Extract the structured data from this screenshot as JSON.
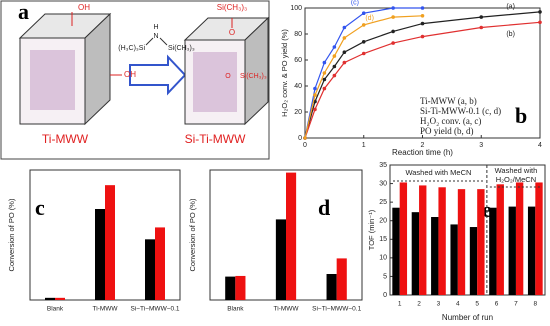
{
  "diagram": {
    "panel_label": "a",
    "left_label": "Ti-MWW",
    "right_label": "Si-Ti-MWW",
    "oh_top": "OH",
    "oh_right": "OH",
    "reagent_left": "(H₃C)₃Si",
    "reagent_h": "H",
    "reagent_n": "N",
    "reagent_right": "Si(CH₃)₃",
    "o_top": "O",
    "si_top": "Si(CH₃)₃",
    "o_right": "O",
    "si_right": "Si(CH₃)₃"
  },
  "chart_data": [
    {
      "type": "line",
      "panel_label": "b",
      "x_label": "Reaction time (h)",
      "y_label": "H₂O₂ conv. & PO yield (%)",
      "x": [
        0,
        0.17,
        0.33,
        0.5,
        0.67,
        1,
        1.5,
        2,
        3,
        4
      ],
      "series": [
        {
          "name": "(a)",
          "color": "#222222",
          "values": [
            0,
            28,
            45,
            55,
            66,
            74,
            82,
            88,
            93,
            97
          ]
        },
        {
          "name": "(b)",
          "color": "#e03030",
          "values": [
            0,
            22,
            38,
            48,
            58,
            65,
            73,
            78,
            85,
            89
          ]
        },
        {
          "name": "(c)",
          "color": "#3355ee",
          "values": [
            0,
            38,
            58,
            70,
            85,
            96,
            100,
            100,
            null,
            null
          ]
        },
        {
          "name": "(d)",
          "color": "#f0a020",
          "values": [
            0,
            33,
            50,
            63,
            77,
            87,
            93,
            94,
            null,
            null
          ]
        }
      ],
      "xlim": [
        0,
        4
      ],
      "xticks": [
        0,
        1,
        2,
        3,
        4
      ],
      "ylim": [
        0,
        100
      ],
      "yticks": [
        0,
        20,
        40,
        60,
        80,
        100
      ],
      "legend_lines": [
        "Ti-MWW (a, b)",
        "Si-Ti-MWW-0.1 (c, d)",
        "H₂O₂ conv. (a, c)",
        "PO yield (b, d)"
      ]
    },
    {
      "type": "bar",
      "panel_label": "c",
      "y_label": "Conversion of PO (%)",
      "categories": [
        "Blank",
        "Ti-MWW",
        "Si−Ti−MWW−0.1"
      ],
      "series": [
        {
          "color": "#000000",
          "values": [
            1,
            42,
            28
          ]
        },
        {
          "color": "#ee1111",
          "values": [
            1,
            53,
            33.5
          ]
        }
      ],
      "ylim": [
        0,
        60
      ]
    },
    {
      "type": "bar",
      "panel_label": "d",
      "y_label": "Conversion of PO (%)",
      "categories": [
        "Blank",
        "Ti-MWW",
        "Si−Ti−MWW−0.1"
      ],
      "series": [
        {
          "color": "#000000",
          "values": [
            18,
            62,
            20
          ]
        },
        {
          "color": "#ee1111",
          "values": [
            18.5,
            98,
            32
          ]
        }
      ],
      "ylim": [
        0,
        100
      ]
    },
    {
      "type": "bar",
      "panel_label": "e",
      "x_label": "Number of run",
      "y_label": "TOF (min⁻¹)",
      "categories": [
        "1",
        "2",
        "3",
        "4",
        "5",
        "6",
        "7",
        "8"
      ],
      "series": [
        {
          "color": "#000000",
          "values": [
            23.5,
            22.3,
            21,
            19,
            18.3,
            23.5,
            23.8,
            23.8
          ]
        },
        {
          "color": "#ee1111",
          "values": [
            30.3,
            29.5,
            29,
            28.5,
            28.5,
            29.8,
            30.3,
            30.3
          ]
        }
      ],
      "ylim": [
        0,
        35
      ],
      "yticks": [
        0,
        5,
        10,
        15,
        20,
        25,
        30,
        35
      ],
      "annotations": [
        "Washed with MeCN",
        "Washed with",
        "H₂O₂/MeCN"
      ]
    }
  ]
}
